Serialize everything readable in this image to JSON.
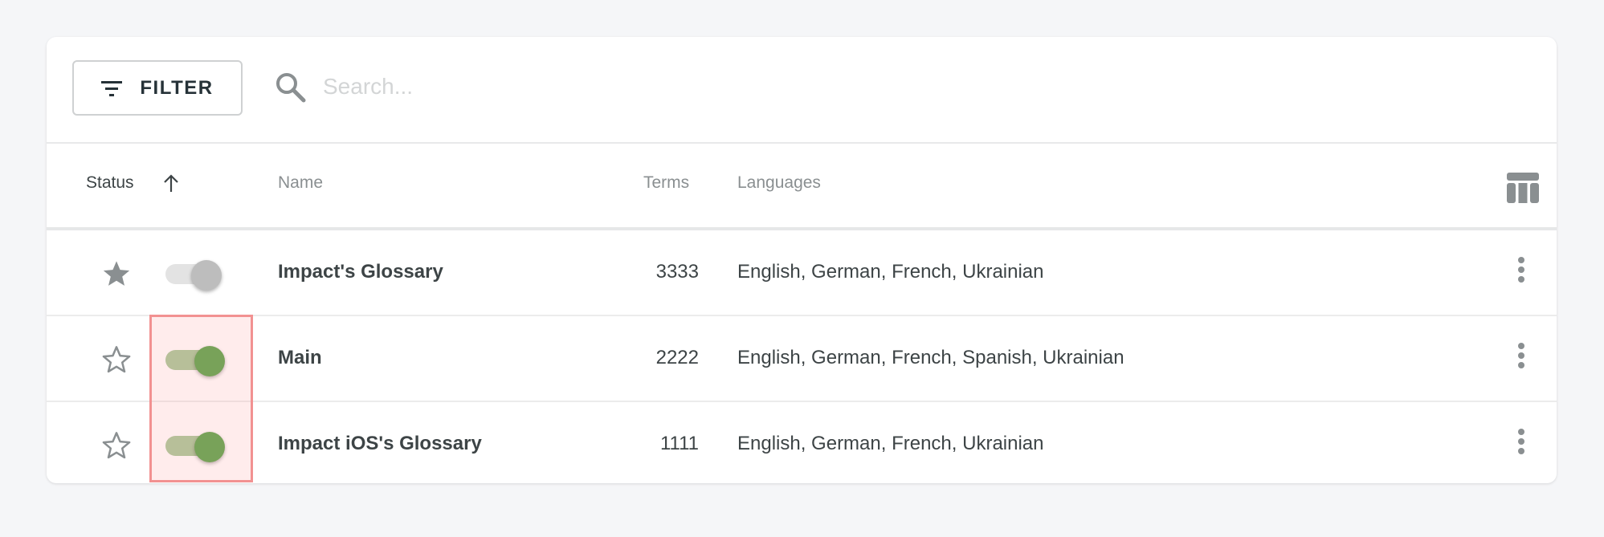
{
  "toolbar": {
    "filter_label": "FILTER",
    "filter_icon": "filter-list-icon",
    "search_icon": "search-icon",
    "search_placeholder": "Search...",
    "search_value": ""
  },
  "table": {
    "columns": {
      "status": "Status",
      "name": "Name",
      "terms": "Terms",
      "languages": "Languages"
    },
    "sort": {
      "column": "Status",
      "direction": "ascending",
      "icon": "arrow-up-icon"
    },
    "columns_icon": "view-column-icon",
    "rows": [
      {
        "starred": true,
        "enabled": false,
        "name": "Impact's Glossary",
        "terms": "3333",
        "languages": "English, German, French, Ukrainian"
      },
      {
        "starred": false,
        "enabled": true,
        "name": "Main",
        "terms": "2222",
        "languages": "English, German, French, Spanish, Ukrainian"
      },
      {
        "starred": false,
        "enabled": true,
        "name": "Impact iOS's Glossary",
        "terms": "1111",
        "languages": "English, German, French, Ukrainian"
      }
    ]
  },
  "colors": {
    "toggle_on": "#5ba54c",
    "toggle_on_track": "#a8c89a",
    "toggle_off": "#bdbdbd",
    "highlight_border": "#f29191",
    "icon_gray": "#8a8f91"
  }
}
